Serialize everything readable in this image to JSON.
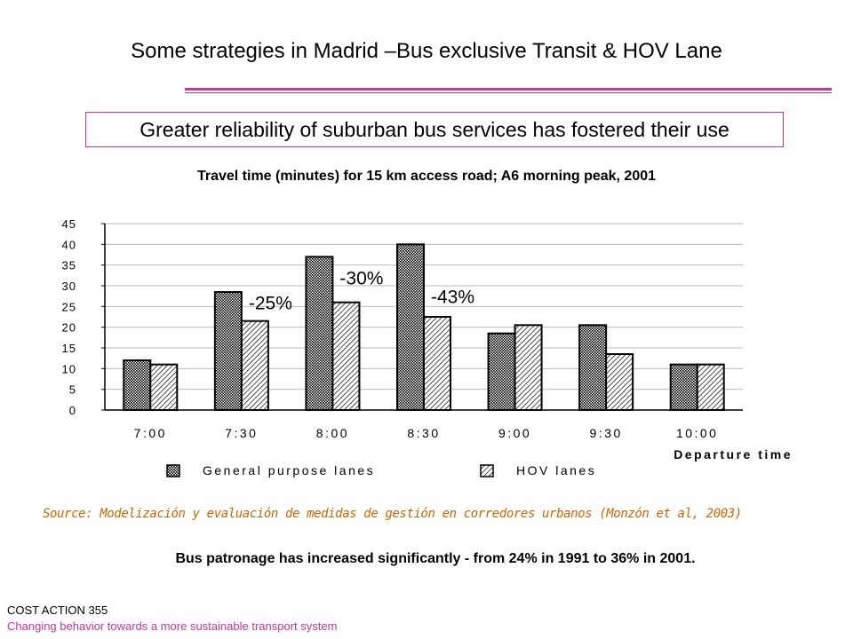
{
  "slide": {
    "title": "Some strategies in Madrid –Bus exclusive Transit & HOV Lane",
    "headline": "Greater reliability of suburban bus services has fostered their use",
    "conclusion": "Bus patronage has increased significantly - from 24% in 1991 to 36% in 2001.",
    "source": "Source: Modelización y evaluación de medidas de gestión en corredores urbanos (Monzón et al, 2003)",
    "footer_org": "COST ACTION 355",
    "footer_sub": "Changing behavior towards a more sustainable transport system",
    "colors": {
      "accent": "#cc3399",
      "source_text": "#cc6600",
      "bar_fill": "#ffffff",
      "bar_stroke": "#000000"
    }
  },
  "chart_data": {
    "type": "bar",
    "title": "Travel time (minutes) for 15 km access road; A6 morning peak, 2001",
    "xlabel": "Departure time",
    "ylabel": "",
    "categories": [
      "7:00",
      "7:30",
      "8:00",
      "8:30",
      "9:00",
      "9:30",
      "10:00"
    ],
    "series": [
      {
        "name": "General purpose lanes",
        "pattern": "dotted",
        "values": [
          12,
          28.5,
          37,
          40,
          18.5,
          20.5,
          11
        ]
      },
      {
        "name": "HOV lanes",
        "pattern": "hatched",
        "values": [
          11,
          21.5,
          26,
          22.5,
          20.5,
          13.5,
          11
        ]
      }
    ],
    "yticks": [
      0,
      5,
      10,
      15,
      20,
      25,
      30,
      35,
      40,
      45
    ],
    "ylim": [
      0,
      45
    ],
    "grid": true,
    "legend": "bottom",
    "annotations": [
      {
        "text": "-25%",
        "category": "7:30",
        "y": 26
      },
      {
        "text": "-30%",
        "category": "8:00",
        "y": 32
      },
      {
        "text": "-43%",
        "category": "8:30",
        "y": 27.5
      }
    ]
  }
}
